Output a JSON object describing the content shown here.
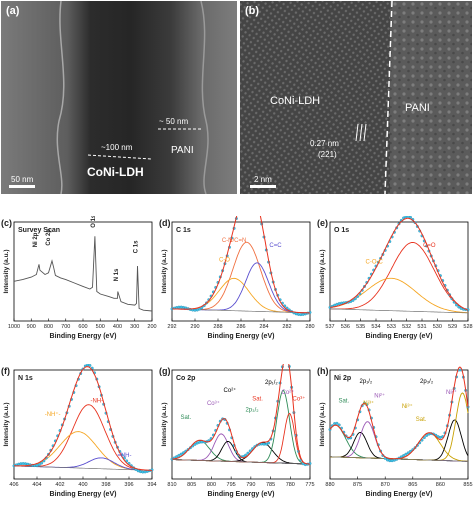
{
  "panels": {
    "a": {
      "letter": "(a)",
      "ldh_label": "CoNi-LDH",
      "pani_label": "PANI",
      "thick_100": "~100 nm",
      "thick_50": "~ 50 nm",
      "scale": "50 nm"
    },
    "b": {
      "letter": "(b)",
      "ldh_label": "CoNi-LDH",
      "pani_label": "PANI",
      "d_spacing": "0.27 nm",
      "plane": "(221)",
      "scale": "2 nm"
    }
  },
  "colors": {
    "data": "#3ec0e6",
    "envelope": "#e8331f",
    "c_nc": "#f07040",
    "c_o": "#f5a623",
    "c_c": "#5a4fcf",
    "o_co": "#f5a623",
    "o_eq": "#e8331f",
    "n_nh": "#e8331f",
    "n_nh2": "#f5a623",
    "n_eqnh": "#5a4fcf",
    "sat": "#2e8b57",
    "co3": "#9b59b6",
    "co2": "#e8331f",
    "ni3": "#c8a000",
    "ni2": "#9b59b6",
    "bg": "#555555"
  },
  "chart_data": [
    {
      "panel": "(c)",
      "type": "line",
      "title": "Survey Scan",
      "xlabel": "Binding Energy (eV)",
      "ylabel": "Intensity (a.u.)",
      "xlim": [
        1000,
        200
      ],
      "xticks": [
        1000,
        900,
        800,
        700,
        600,
        500,
        400,
        300,
        200
      ],
      "peaks": [
        "Ni 2p",
        "Co 2p",
        "O 1s",
        "N 1s",
        "C 1s"
      ],
      "series": [
        {
          "x": [
            1000,
            950,
            900,
            870,
            855,
            850,
            820,
            800,
            780,
            770,
            760,
            730,
            700,
            650,
            600,
            560,
            545,
            531,
            520,
            500,
            450,
            420,
            400,
            398,
            380,
            340,
            300,
            290,
            284,
            275,
            250,
            200
          ],
          "y": [
            0.42,
            0.44,
            0.47,
            0.5,
            0.62,
            0.55,
            0.5,
            0.52,
            0.66,
            0.58,
            0.49,
            0.46,
            0.44,
            0.4,
            0.36,
            0.33,
            0.35,
            0.95,
            0.3,
            0.27,
            0.24,
            0.22,
            0.22,
            0.3,
            0.18,
            0.15,
            0.14,
            0.16,
            0.6,
            0.1,
            0.08,
            0.07
          ]
        }
      ]
    },
    {
      "panel": "(d)",
      "type": "line",
      "title": "C 1s",
      "xlabel": "Binding Energy (eV)",
      "ylabel": "Intensity (a.u.)",
      "xlim": [
        292,
        280
      ],
      "xticks": [
        292,
        290,
        288,
        286,
        284,
        282,
        280
      ],
      "components": [
        {
          "name": "C-N/C=N",
          "center": 285.5,
          "height": 0.85,
          "width": 1.2
        },
        {
          "name": "C-O",
          "center": 286.6,
          "height": 0.4,
          "width": 1.3
        },
        {
          "name": "C=C",
          "center": 284.6,
          "height": 0.6,
          "width": 1.0
        }
      ]
    },
    {
      "panel": "(e)",
      "type": "line",
      "title": "O 1s",
      "xlabel": "Binding Energy (eV)",
      "ylabel": "Intensity (a.u.)",
      "xlim": [
        537,
        528
      ],
      "xticks": [
        537,
        536,
        535,
        534,
        533,
        532,
        531,
        530,
        529,
        528
      ],
      "components": [
        {
          "name": "C=O",
          "center": 531.6,
          "height": 0.85,
          "width": 1.4
        },
        {
          "name": "C-O-C",
          "center": 533.0,
          "height": 0.4,
          "width": 1.6
        }
      ]
    },
    {
      "panel": "(f)",
      "type": "line",
      "title": "N 1s",
      "xlabel": "Binding Energy (eV)",
      "ylabel": "Intensity (a.u.)",
      "xlim": [
        406,
        394
      ],
      "xticks": [
        406,
        404,
        402,
        400,
        398,
        396,
        394
      ],
      "components": [
        {
          "name": "-NH-",
          "center": 399.5,
          "height": 0.7,
          "width": 1.4
        },
        {
          "name": "-NH⁺-",
          "center": 400.4,
          "height": 0.4,
          "width": 1.6
        },
        {
          "name": "=NH-",
          "center": 398.4,
          "height": 0.12,
          "width": 1.1
        }
      ]
    },
    {
      "panel": "(g)",
      "type": "line",
      "title": "Co 2p",
      "xlabel": "Binding Energy (eV)",
      "ylabel": "Intensity (a.u.)",
      "xlim": [
        810,
        775
      ],
      "xticks": [
        810,
        805,
        800,
        795,
        790,
        785,
        780,
        775
      ],
      "labels": [
        "Sat.",
        "Co³⁺",
        "Co²⁺",
        "2p₁/₂",
        "2p₃/₂",
        "Sat.",
        "Co²⁺",
        "Co³⁺"
      ],
      "components": [
        {
          "name": "Sat.",
          "center": 803.0,
          "height": 0.22,
          "width": 2.5
        },
        {
          "name": "Co²⁺",
          "center": 797.5,
          "height": 0.3,
          "width": 1.8
        },
        {
          "name": "Co³⁺",
          "center": 795.8,
          "height": 0.22,
          "width": 1.6
        },
        {
          "name": "Sat.",
          "center": 787.0,
          "height": 0.22,
          "width": 2.5
        },
        {
          "name": "Co²⁺",
          "center": 781.8,
          "height": 0.8,
          "width": 1.6
        },
        {
          "name": "Co³⁺",
          "center": 780.2,
          "height": 0.55,
          "width": 1.3
        }
      ]
    },
    {
      "panel": "(h)",
      "type": "line",
      "title": "Ni 2p",
      "xlabel": "Binding Energy (eV)",
      "ylabel": "Intensity (a.u.)",
      "xlim": [
        880,
        855
      ],
      "xticks": [
        880,
        875,
        870,
        865,
        860,
        855
      ],
      "labels": [
        "Sat.",
        "2p₁/₂",
        "Ni²⁺",
        "Ni³⁺",
        "2p₃/₂",
        "Ni³⁺",
        "Ni²⁺",
        "Sat."
      ],
      "components": [
        {
          "name": "Sat.",
          "center": 879.0,
          "height": 0.35,
          "width": 1.8
        },
        {
          "name": "Ni³⁺",
          "center": 874.5,
          "height": 0.28,
          "width": 1.2
        },
        {
          "name": "Ni²⁺",
          "center": 873.2,
          "height": 0.4,
          "width": 1.3
        },
        {
          "name": "Sat.",
          "center": 862.0,
          "height": 0.3,
          "width": 2.0
        },
        {
          "name": "Ni³⁺",
          "center": 857.4,
          "height": 0.45,
          "width": 1.2
        },
        {
          "name": "Ni²⁺",
          "center": 856.0,
          "height": 0.75,
          "width": 1.2
        }
      ]
    }
  ]
}
